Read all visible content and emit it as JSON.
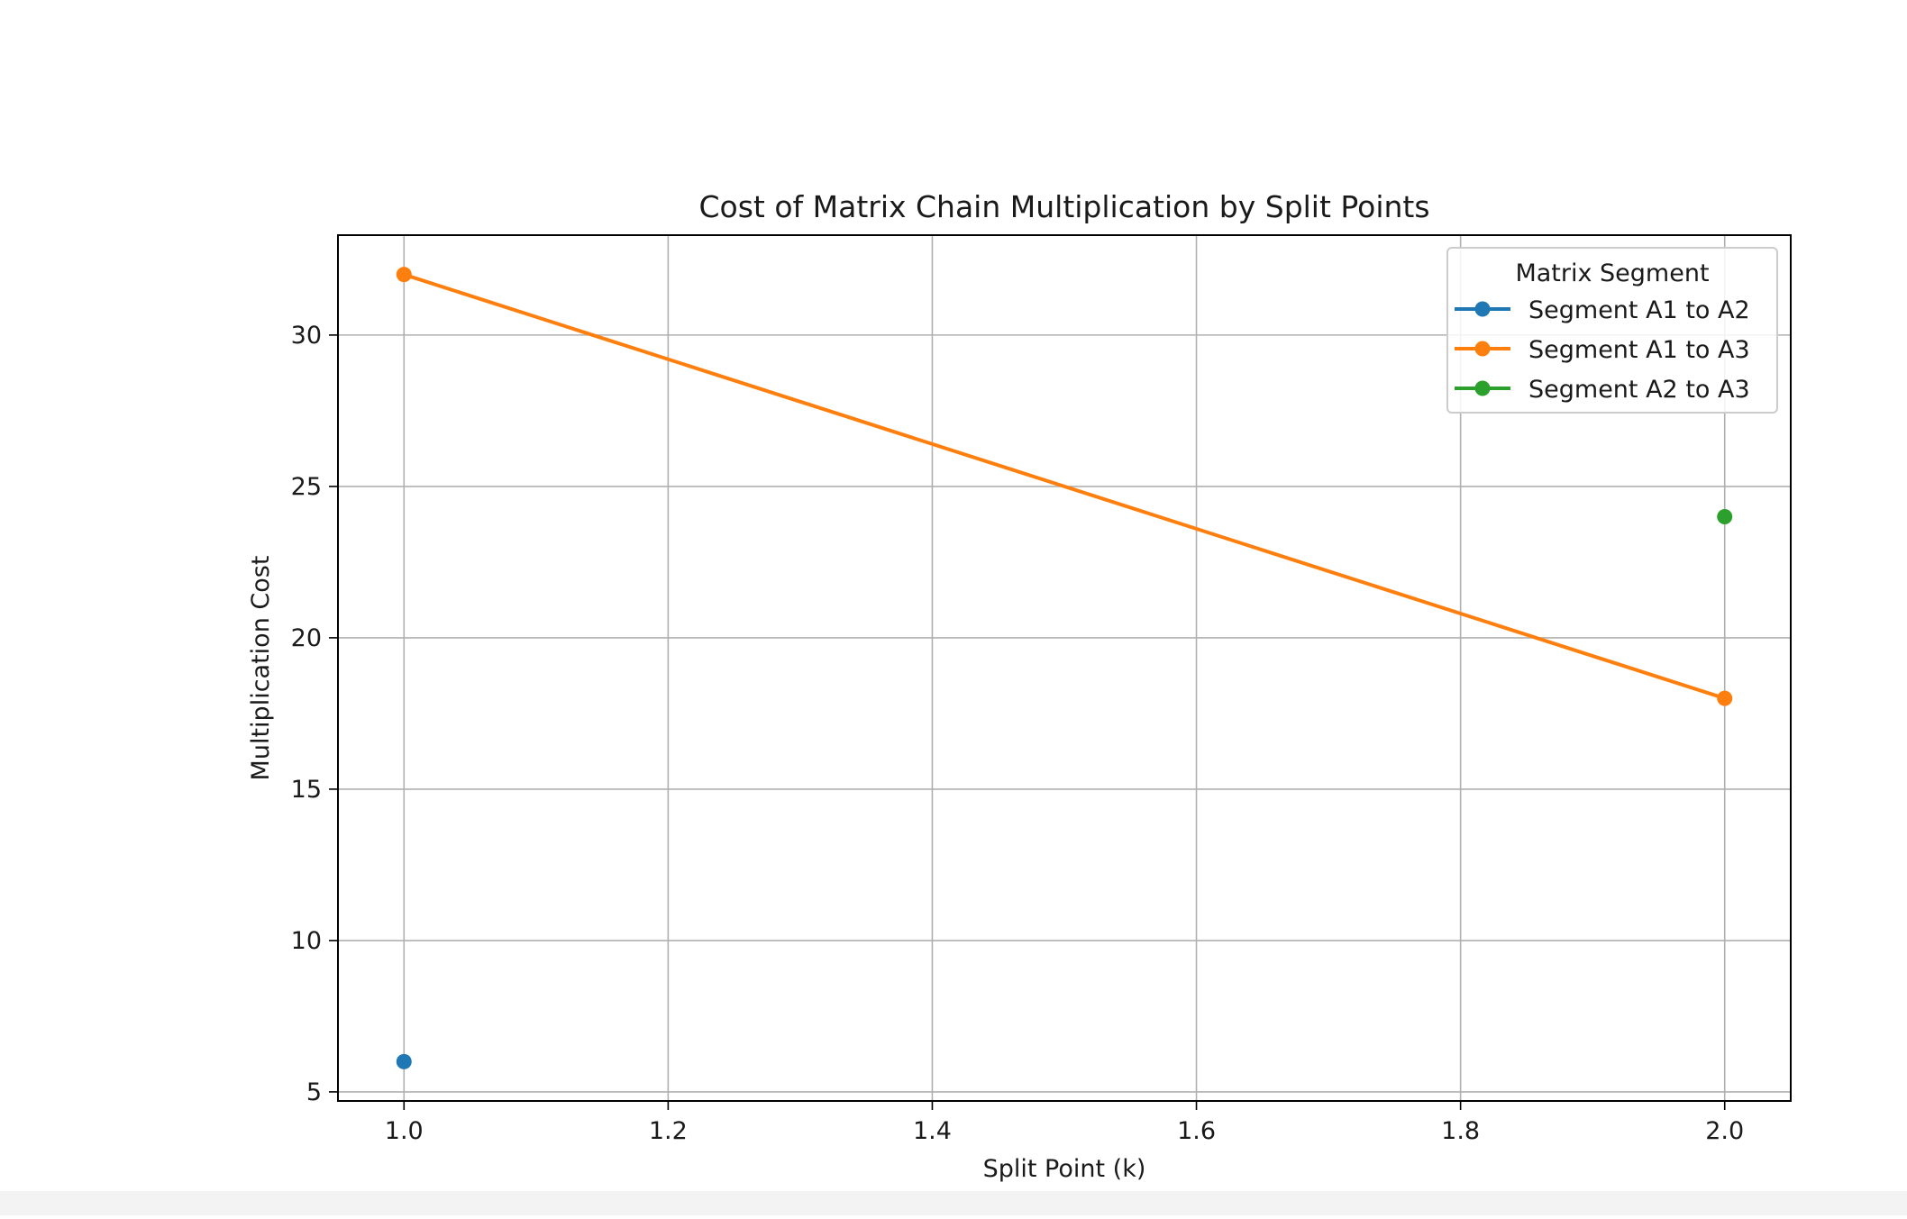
{
  "chart_data": {
    "type": "line",
    "title": "Cost of Matrix Chain Multiplication by Split Points",
    "xlabel": "Split Point (k)",
    "ylabel": "Multiplication Cost",
    "xlim": [
      0.95,
      2.05
    ],
    "ylim": [
      4.7,
      33.3
    ],
    "xticks": [
      1.0,
      1.2,
      1.4,
      1.6,
      1.8,
      2.0
    ],
    "xtick_labels": [
      "1.0",
      "1.2",
      "1.4",
      "1.6",
      "1.8",
      "2.0"
    ],
    "yticks": [
      5,
      10,
      15,
      20,
      25,
      30
    ],
    "ytick_labels": [
      "5",
      "10",
      "15",
      "20",
      "25",
      "30"
    ],
    "grid": true,
    "legend": {
      "title": "Matrix Segment",
      "placement": "top-right"
    },
    "series": [
      {
        "name": "Segment A1 to A2",
        "color": "#1f77b4",
        "x": [
          1.0
        ],
        "y": [
          6
        ]
      },
      {
        "name": "Segment A1 to A3",
        "color": "#ff7f0e",
        "x": [
          1.0,
          2.0
        ],
        "y": [
          32,
          18
        ]
      },
      {
        "name": "Segment A2 to A3",
        "color": "#2ca02c",
        "x": [
          2.0
        ],
        "y": [
          24
        ]
      }
    ]
  }
}
